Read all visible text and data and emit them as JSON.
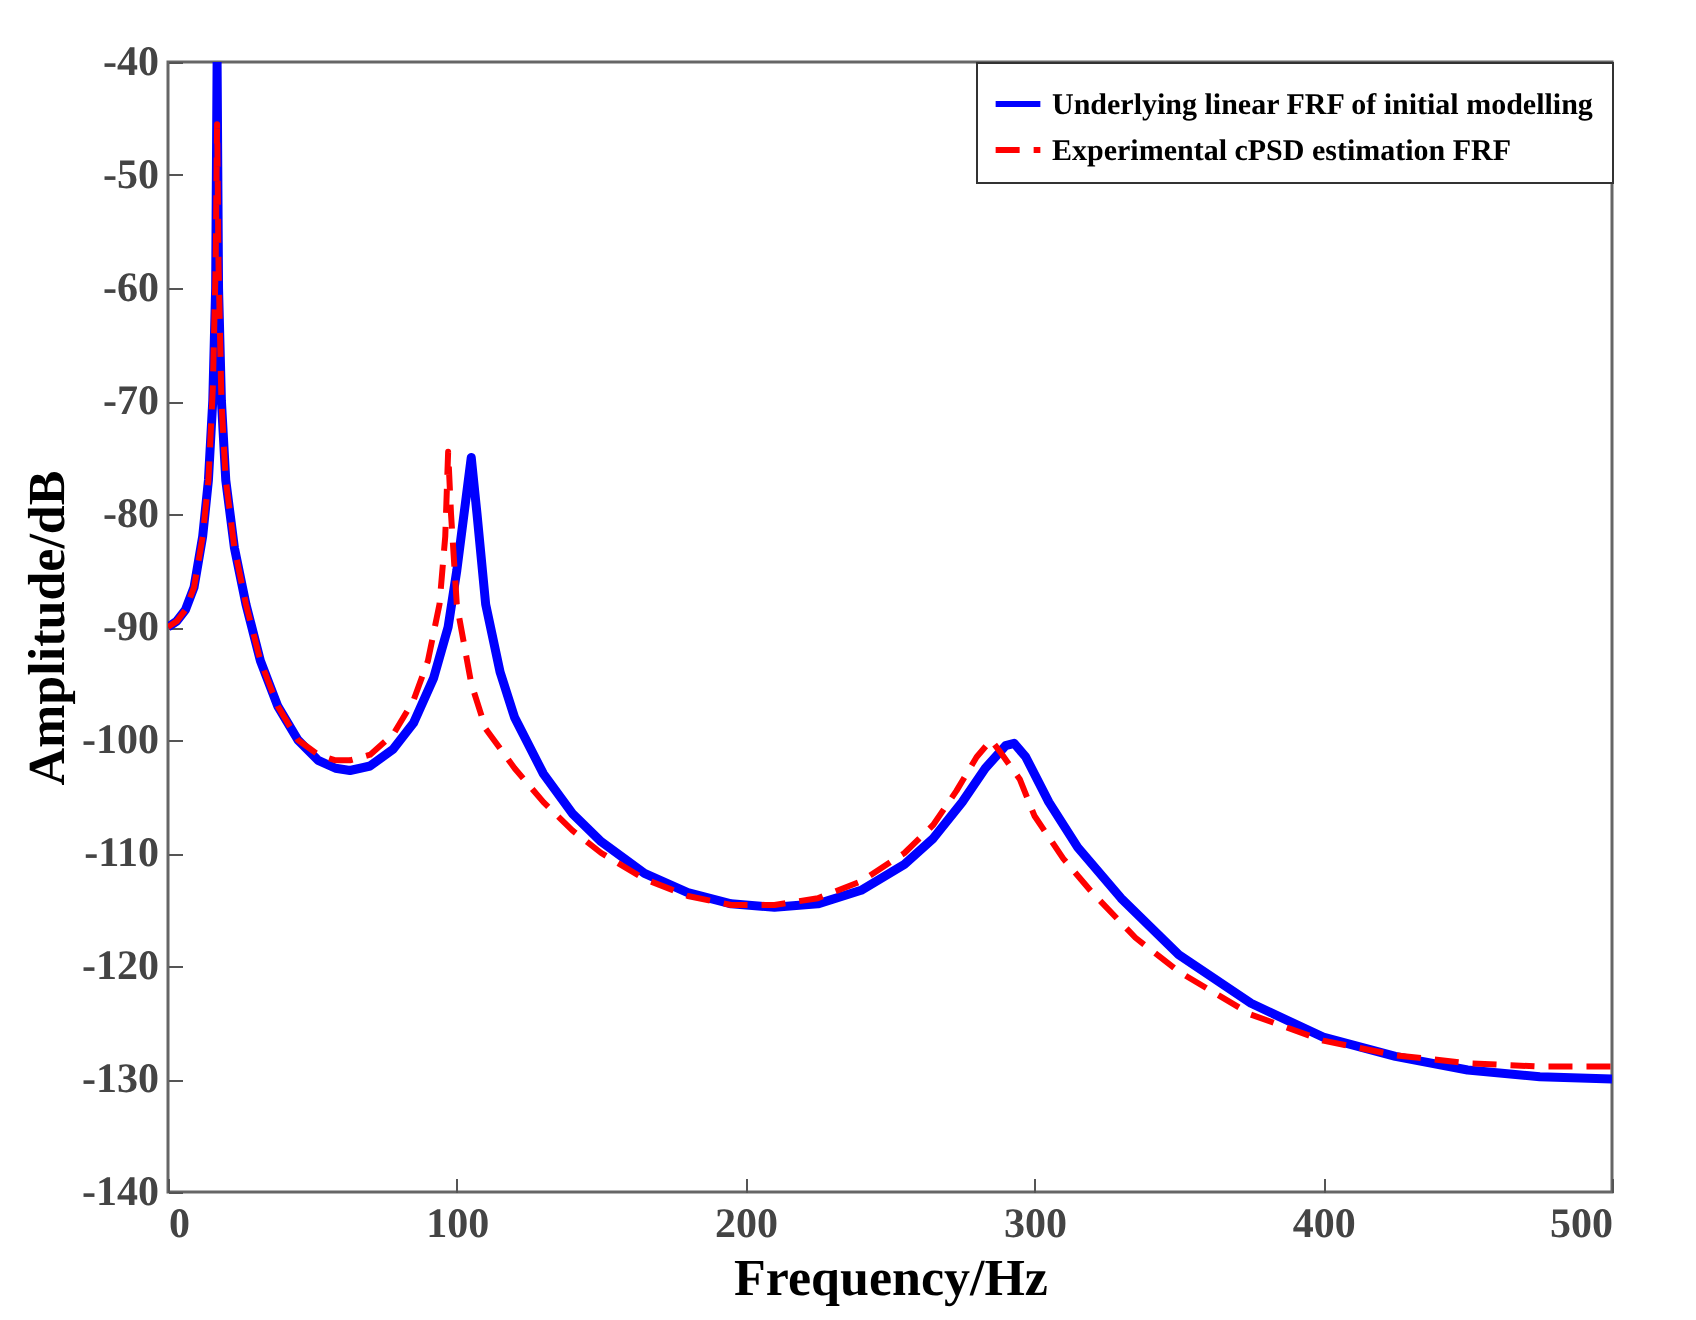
{
  "chart_data": {
    "type": "line",
    "xlabel": "Frequency/Hz",
    "ylabel": "Amplitude/dB",
    "xlim": [
      0,
      500
    ],
    "xticks": [
      0,
      100,
      200,
      300,
      400,
      500
    ],
    "ylim": [
      -140,
      -40
    ],
    "yticks": [
      -140,
      -130,
      -120,
      -110,
      -100,
      -90,
      -80,
      -70,
      -60,
      -50,
      -40
    ],
    "grid": false,
    "legend": "top right",
    "marker": "none",
    "series": [
      {
        "name": "Underlying linear FRF of initial modelling",
        "color": "#0000ff",
        "line_style": "solid",
        "x": [
          0,
          3,
          6,
          9,
          12,
          14,
          15.5,
          16.5,
          17,
          17.5,
          18.5,
          20,
          23,
          27,
          32,
          38,
          45,
          52,
          58,
          63,
          70,
          78,
          85,
          92,
          97,
          100,
          103,
          105,
          107,
          110,
          115,
          120,
          130,
          140,
          150,
          165,
          180,
          195,
          210,
          225,
          240,
          255,
          265,
          275,
          283,
          290,
          293,
          297,
          305,
          315,
          330,
          350,
          375,
          400,
          425,
          450,
          475,
          500
        ],
        "values": [
          -90,
          -89.5,
          -88.5,
          -86.5,
          -82,
          -77,
          -70,
          -60,
          -40,
          -60,
          -70,
          -77,
          -83,
          -88,
          -93,
          -97,
          -100,
          -101.8,
          -102.5,
          -102.7,
          -102.3,
          -100.8,
          -98.5,
          -94.5,
          -90,
          -85,
          -79,
          -75,
          -80,
          -88,
          -94,
          -98,
          -103,
          -106.5,
          -109,
          -111.8,
          -113.5,
          -114.5,
          -114.8,
          -114.5,
          -113.3,
          -111,
          -108.7,
          -105.5,
          -102.5,
          -100.5,
          -100.3,
          -101.5,
          -105.5,
          -109.5,
          -114,
          -119,
          -123.3,
          -126.3,
          -128,
          -129.2,
          -129.8,
          -130
        ]
      },
      {
        "name": "Experimental cPSD estimation FRF",
        "color": "#ff0000",
        "line_style": "dashed",
        "x": [
          0,
          3,
          6,
          9,
          12,
          14,
          15.5,
          16.5,
          17,
          17.5,
          18.5,
          20,
          23,
          27,
          32,
          38,
          45,
          52,
          58,
          63,
          70,
          78,
          85,
          90,
          94,
          96,
          97,
          98,
          100,
          105,
          110,
          120,
          130,
          140,
          150,
          165,
          180,
          195,
          210,
          225,
          240,
          255,
          265,
          273,
          280,
          285,
          288,
          295,
          300,
          310,
          320,
          335,
          350,
          375,
          400,
          425,
          450,
          475,
          500
        ],
        "values": [
          -90,
          -89.5,
          -88.5,
          -86.5,
          -82,
          -77,
          -69,
          -58,
          -45.5,
          -58,
          -70,
          -77,
          -83,
          -88,
          -93,
          -97,
          -100,
          -101.3,
          -101.8,
          -101.8,
          -101.3,
          -99.5,
          -96.5,
          -93,
          -88,
          -82,
          -74.5,
          -80,
          -88,
          -95,
          -99,
          -102.5,
          -105.5,
          -108,
          -110,
          -112.3,
          -113.8,
          -114.6,
          -114.6,
          -114,
          -112.5,
          -110,
          -107.5,
          -104.5,
          -101.5,
          -100,
          -101,
          -103.5,
          -106.7,
          -110.5,
          -113.5,
          -117.5,
          -120.5,
          -124.3,
          -126.6,
          -127.9,
          -128.6,
          -128.9,
          -128.9
        ]
      }
    ]
  }
}
